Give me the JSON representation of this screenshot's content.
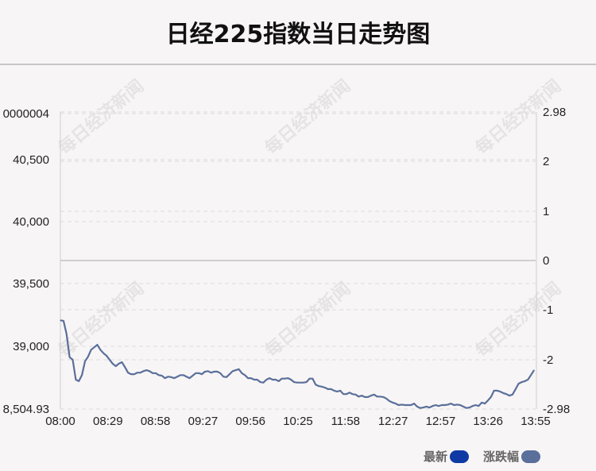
{
  "title": "日经225指数当日走势图",
  "watermark": "每日经济新闻",
  "legend": [
    {
      "label": "最新",
      "color": "#0f3aa3"
    },
    {
      "label": "涨跌幅",
      "color": "#5a6f9a"
    }
  ],
  "chart_data": {
    "type": "line",
    "title": "日经225指数当日走势图",
    "x_tick_labels": [
      "08:00",
      "08:29",
      "08:58",
      "09:27",
      "09:56",
      "10:25",
      "11:58",
      "12:27",
      "12:57",
      "13:26",
      "13:55"
    ],
    "left_axis": {
      "tick_labels": [
        "0000004",
        "40,500",
        "40,000",
        "39,500",
        "39,000",
        "8,504.93"
      ],
      "values": [
        null,
        40500,
        40000,
        39500,
        39000,
        38504.93
      ]
    },
    "right_axis": {
      "tick_labels": [
        "2.98",
        "2",
        "1",
        "0",
        "-1",
        "-2",
        "-2.98"
      ],
      "ylim": [
        -2.98,
        2.98
      ]
    },
    "grid": "dashed horizontal",
    "line_color": "#5a6f9a",
    "series": [
      {
        "name": "涨跌幅",
        "values": [
          -1.2,
          -1.21,
          -1.47,
          -1.94,
          -1.99,
          -2.39,
          -2.42,
          -2.3,
          -2.02,
          -1.93,
          -1.79,
          -1.74,
          -1.69,
          -1.79,
          -1.86,
          -1.91,
          -1.99,
          -2.07,
          -2.12,
          -2.07,
          -2.04,
          -2.14,
          -2.25,
          -2.28,
          -2.28,
          -2.25,
          -2.25,
          -2.22,
          -2.2,
          -2.22,
          -2.26,
          -2.26,
          -2.3,
          -2.31,
          -2.36,
          -2.33,
          -2.34,
          -2.36,
          -2.33,
          -2.3,
          -2.3,
          -2.33,
          -2.36,
          -2.31,
          -2.26,
          -2.26,
          -2.28,
          -2.23,
          -2.22,
          -2.25,
          -2.23,
          -2.23,
          -2.26,
          -2.33,
          -2.34,
          -2.28,
          -2.22,
          -2.2,
          -2.18,
          -2.26,
          -2.3,
          -2.36,
          -2.36,
          -2.39,
          -2.39,
          -2.44,
          -2.45,
          -2.39,
          -2.36,
          -2.39,
          -2.39,
          -2.42,
          -2.37,
          -2.37,
          -2.36,
          -2.39,
          -2.44,
          -2.45,
          -2.45,
          -2.45,
          -2.44,
          -2.37,
          -2.37,
          -2.49,
          -2.52,
          -2.53,
          -2.55,
          -2.58,
          -2.58,
          -2.61,
          -2.63,
          -2.61,
          -2.68,
          -2.68,
          -2.65,
          -2.68,
          -2.69,
          -2.73,
          -2.71,
          -2.74,
          -2.74,
          -2.71,
          -2.69,
          -2.73,
          -2.73,
          -2.74,
          -2.77,
          -2.82,
          -2.85,
          -2.87,
          -2.9,
          -2.89,
          -2.9,
          -2.9,
          -2.9,
          -2.87,
          -2.93,
          -2.96,
          -2.95,
          -2.93,
          -2.95,
          -2.92,
          -2.9,
          -2.92,
          -2.9,
          -2.9,
          -2.89,
          -2.87,
          -2.9,
          -2.89,
          -2.9,
          -2.93,
          -2.96,
          -2.95,
          -2.92,
          -2.9,
          -2.92,
          -2.85,
          -2.87,
          -2.81,
          -2.74,
          -2.61,
          -2.61,
          -2.63,
          -2.66,
          -2.68,
          -2.71,
          -2.69,
          -2.58,
          -2.47,
          -2.44,
          -2.42,
          -2.39,
          -2.3,
          -2.2
        ]
      }
    ]
  }
}
